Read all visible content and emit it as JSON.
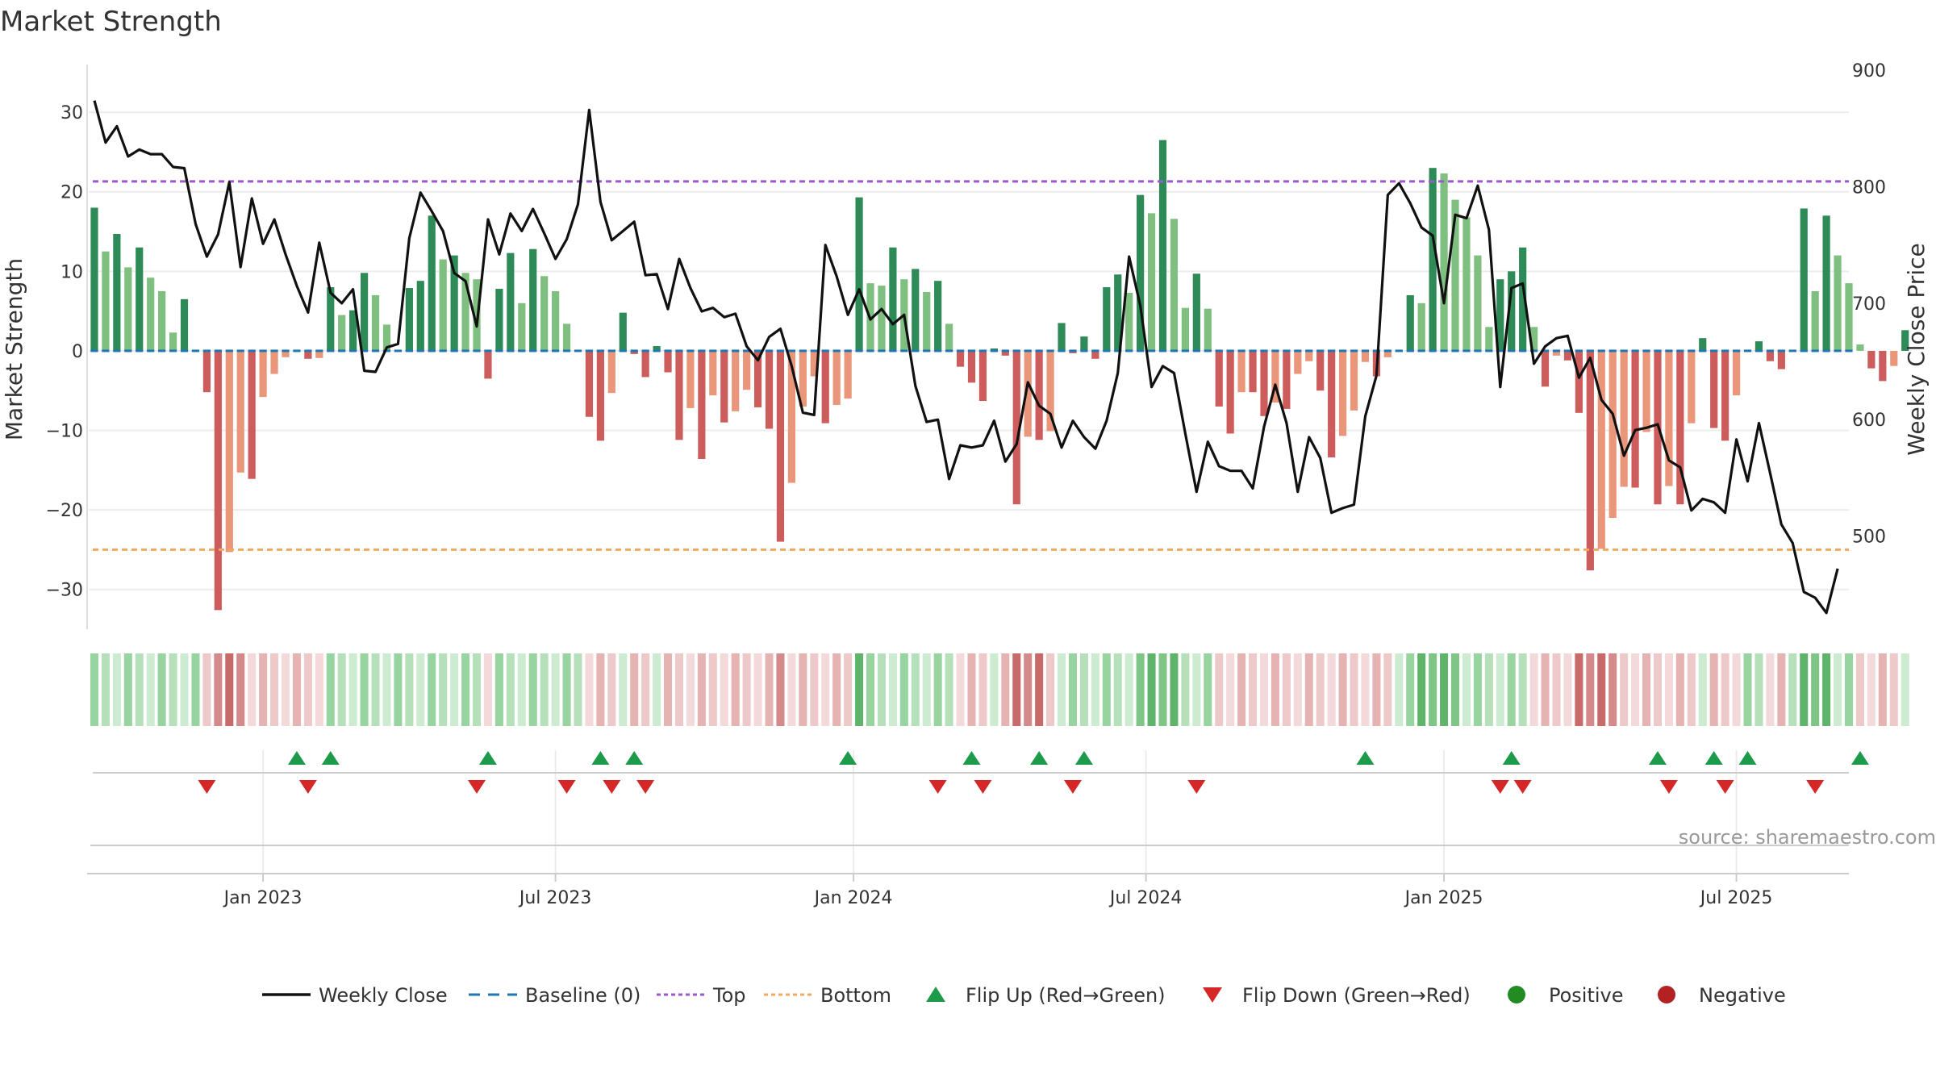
{
  "colors": {
    "close_line": "#111111",
    "baseline": "#1f77b4",
    "top": "#9b59d0",
    "bottom": "#f0a860",
    "flip_up": "#1e9b4a",
    "flip_down": "#d62728",
    "positive": "#228b22",
    "negative": "#b22222",
    "green_strong": "#2e8b57",
    "green_light": "#7fbf7f",
    "red_strong": "#cd5c5c",
    "red_light": "#e9967a"
  },
  "chart_data": {
    "type": "bar+line",
    "title": "Market Strength",
    "source": "source: sharemaestro.com",
    "ylabel_left": "Market Strength",
    "ylabel_right": "Weekly Close Price",
    "ylim_left": [
      -35,
      36
    ],
    "ylim_right": [
      420,
      905
    ],
    "yticks_left": [
      30,
      20,
      10,
      0,
      -10,
      -20,
      -30
    ],
    "yticks_left_labels": [
      "30",
      "20",
      "10",
      "0",
      "−10",
      "−20",
      "−30"
    ],
    "yticks_right": [
      900,
      800,
      700,
      600,
      500
    ],
    "yticks_right_labels": [
      "900",
      "800",
      "700",
      "600",
      "500"
    ],
    "top_level": 21.3,
    "bottom_level": -25,
    "x_ticks": [
      {
        "label": "Jan 2023",
        "week": 15
      },
      {
        "label": "Jul 2023",
        "week": 41
      },
      {
        "label": "Jan 2024",
        "week": 67.5
      },
      {
        "label": "Jul 2024",
        "week": 93.5
      },
      {
        "label": "Jan 2025",
        "week": 120
      },
      {
        "label": "Jul 2025",
        "week": 146
      }
    ],
    "week_count": 157,
    "strength": [
      18,
      12.5,
      14.7,
      10.5,
      13,
      9.2,
      7.5,
      2.3,
      6.5,
      0,
      -5.2,
      -32.6,
      -25.3,
      -15.3,
      -16.1,
      -5.8,
      -2.9,
      -0.8,
      0,
      -1,
      -0.9,
      8,
      4.5,
      5.1,
      9.8,
      7,
      3.3,
      0,
      7.9,
      8.8,
      17,
      11.5,
      12,
      9.8,
      9,
      -3.5,
      7.8,
      12.3,
      6,
      12.8,
      9.4,
      7.5,
      3.4,
      0,
      -8.3,
      -11.3,
      -5.3,
      4.8,
      -0.4,
      -3.3,
      0.6,
      -2.7,
      -11.2,
      -7.2,
      -13.6,
      -5.6,
      -9,
      -7.6,
      -4.9,
      -7.1,
      -9.8,
      -24,
      -16.6,
      -7,
      -3.2,
      -9.1,
      -6.8,
      -6,
      19.3,
      8.5,
      8.2,
      13,
      9,
      10.3,
      7.4,
      8.8,
      3.4,
      -2,
      -4,
      -6.3,
      0.3,
      -0.6,
      -19.3,
      -10.8,
      -11.2,
      -10.1,
      3.5,
      -0.3,
      1.8,
      -1,
      8,
      9.6,
      7.3,
      19.6,
      17.3,
      26.5,
      16.6,
      5.4,
      9.7,
      5.3,
      -7,
      -10.4,
      -5.2,
      -5.2,
      -8.2,
      -6.5,
      -7.3,
      -2.9,
      -1.3,
      -5,
      -13.4,
      -10.7,
      -7.5,
      -1.4,
      -3.2,
      -0.8,
      0,
      7,
      6,
      23,
      22.3,
      19,
      16.8,
      12,
      3,
      9,
      10,
      13,
      3,
      -4.5,
      -0.6,
      -1.2,
      -7.8,
      -27.6,
      -24.9,
      -21,
      -17.1,
      -17.2,
      -10.2,
      -19.3,
      -17,
      -19.3,
      -9.1,
      1.6,
      -9.7,
      -11.3,
      -5.6,
      0,
      1.2,
      -1.3,
      -2.3,
      0,
      17.9,
      7.5,
      17,
      12,
      8.5,
      0.8,
      -2.2,
      -3.8,
      -1.9,
      2.6
    ],
    "close": [
      874,
      838,
      852,
      826,
      832,
      828,
      828,
      817,
      816,
      768,
      740,
      759,
      804,
      731,
      790,
      751,
      772,
      742,
      715,
      692,
      752,
      709,
      700,
      712,
      642,
      641,
      662,
      665,
      756,
      795,
      779,
      762,
      726,
      719,
      680,
      772,
      742,
      777,
      762,
      781,
      760,
      738,
      755,
      785,
      866,
      787,
      754,
      762,
      770,
      724,
      725,
      695,
      738,
      713,
      693,
      696,
      688,
      691,
      663,
      651,
      671,
      678,
      646,
      606,
      604,
      750,
      723,
      690,
      712,
      686,
      695,
      682,
      690,
      629,
      598,
      600,
      549,
      578,
      576,
      578,
      599,
      564,
      579,
      632,
      612,
      605,
      576,
      599,
      585,
      575,
      599,
      640,
      740,
      698,
      628,
      646,
      640,
      588,
      538,
      581,
      560,
      556,
      556,
      541,
      594,
      630,
      597,
      538,
      585,
      567,
      520,
      524,
      527,
      603,
      638,
      793,
      803,
      786,
      765,
      758,
      700,
      776,
      773,
      801,
      763,
      628,
      713,
      717,
      648,
      663,
      670,
      672,
      636,
      653,
      617,
      605,
      569,
      591,
      593,
      596,
      565,
      559,
      522,
      532,
      529,
      520,
      583,
      547,
      597,
      554,
      510,
      494,
      452,
      447,
      434,
      472
    ],
    "signal_band": [
      1,
      1,
      1,
      1,
      1,
      1,
      1,
      1,
      1,
      1,
      -1,
      -2,
      -2,
      -2,
      -1,
      -1,
      -1,
      -1,
      -1,
      -1,
      -1,
      1,
      1,
      1,
      1,
      1,
      1,
      1,
      1,
      1,
      1,
      1,
      1,
      1,
      1,
      -1,
      1,
      1,
      1,
      1,
      1,
      1,
      1,
      1,
      -1,
      -1,
      -1,
      1,
      -1,
      -1,
      1,
      -1,
      -1,
      -1,
      -1,
      -1,
      -1,
      -1,
      -1,
      -1,
      -1,
      -2,
      -1,
      -1,
      -1,
      -1,
      -1,
      -1,
      2,
      1,
      1,
      1,
      1,
      1,
      1,
      1,
      1,
      -1,
      -1,
      -1,
      1,
      -1,
      -2,
      -2,
      -2,
      -1,
      1,
      1,
      1,
      1,
      1,
      1,
      1,
      2,
      2,
      2,
      2,
      1,
      1,
      1,
      -1,
      -1,
      -1,
      -1,
      -1,
      -1,
      -1,
      -1,
      -1,
      -1,
      -1,
      -1,
      -1,
      -1,
      -1,
      -1,
      1,
      1,
      2,
      2,
      2,
      2,
      1,
      1,
      1,
      1,
      1,
      1,
      -1,
      -1,
      -1,
      -1,
      -2,
      -2,
      -2,
      -2,
      -1,
      -1,
      -1,
      -1,
      -1,
      -1,
      -1,
      1,
      -1,
      -1,
      -1,
      1,
      1,
      -1,
      -1,
      1,
      2,
      2,
      2,
      1,
      1,
      -1,
      -1,
      -1,
      -1,
      1
    ],
    "flip_up_weeks": [
      18,
      21,
      35,
      45,
      48,
      67,
      78,
      84,
      88,
      113,
      126,
      139,
      144,
      147,
      157
    ],
    "flip_down_weeks": [
      10,
      19,
      34,
      42,
      46,
      49,
      75,
      79,
      87,
      98,
      125,
      127,
      140,
      145,
      153
    ]
  },
  "legend": [
    {
      "key": "weekly_close",
      "label": "Weekly Close"
    },
    {
      "key": "baseline",
      "label": "Baseline (0)"
    },
    {
      "key": "top",
      "label": "Top"
    },
    {
      "key": "bottom",
      "label": "Bottom"
    },
    {
      "key": "flip_up",
      "label": "Flip Up (Red→Green)"
    },
    {
      "key": "flip_down",
      "label": "Flip Down (Green→Red)"
    },
    {
      "key": "positive",
      "label": "Positive"
    },
    {
      "key": "negative",
      "label": "Negative"
    }
  ]
}
